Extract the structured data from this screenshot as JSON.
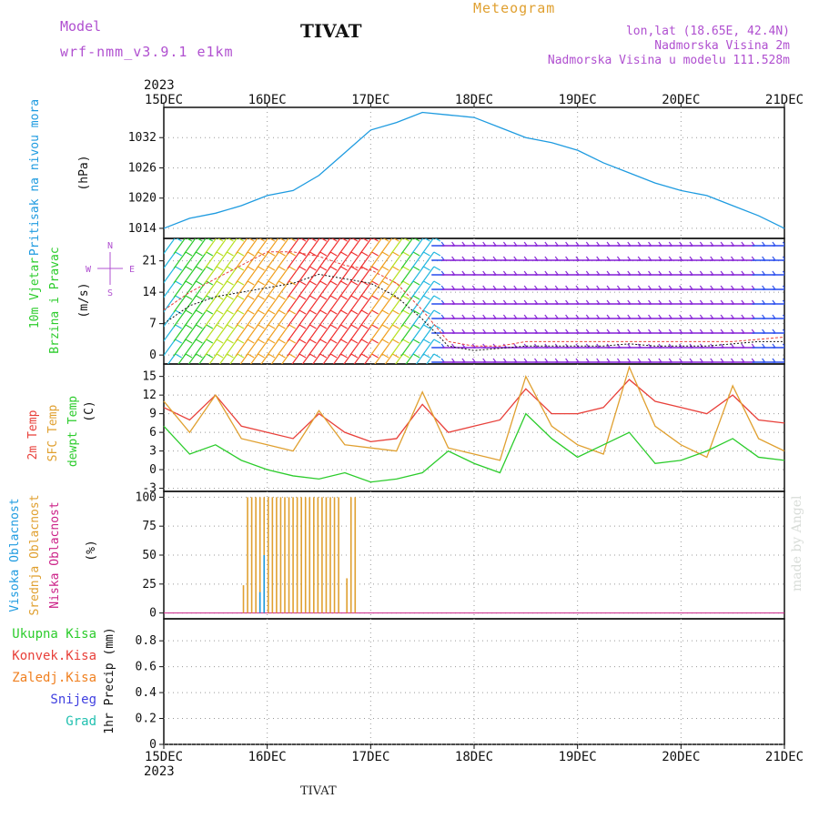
{
  "header": {
    "title": "TIVAT",
    "meteogram_label": "Meteogram",
    "model_label": "Model",
    "model_name": "wrf-nmm_v3.9.1 e1km",
    "lonlat": "lon,lat (18.65E, 42.4N)",
    "altitude": "Nadmorska Visina 2m",
    "model_altitude": "Nadmorska Visina u modelu 111.528m",
    "bottom_title": "TIVAT",
    "credit": "made by Angel"
  },
  "chart_data": [
    {
      "type": "line",
      "id": "pressure",
      "ylabel": [
        "Pritisak na nivou mora",
        "(hPa)"
      ],
      "ylim": [
        1012,
        1038
      ],
      "yticks": [
        1014,
        1020,
        1026,
        1032
      ],
      "x_days": [
        0,
        0.25,
        0.5,
        0.75,
        1,
        1.25,
        1.5,
        1.75,
        2,
        2.25,
        2.5,
        2.75,
        3,
        3.25,
        3.5,
        3.75,
        4,
        4.25,
        4.5,
        4.75,
        5,
        5.25,
        5.5,
        5.75,
        6
      ],
      "series": [
        {
          "color": "#1e9be0",
          "values": [
            1014,
            1016,
            1017,
            1018.5,
            1020.5,
            1021.5,
            1024.5,
            1029,
            1033.5,
            1035,
            1037,
            1036.5,
            1036,
            1034,
            1032,
            1031,
            1029.5,
            1027,
            1025,
            1023,
            1021.5,
            1020.5,
            1018.5,
            1016.5,
            1014
          ]
        }
      ]
    },
    {
      "type": "barb",
      "id": "wind",
      "ylabel": [
        "10m Vjetar",
        "Brzina i Pravac",
        "(m/s)"
      ],
      "compass": [
        "N",
        "E",
        "S",
        "W"
      ],
      "ylim": [
        -2,
        26
      ],
      "yticks": [
        0,
        7,
        14,
        21
      ],
      "x_days": [
        0,
        0.25,
        0.5,
        0.75,
        1,
        1.25,
        1.5,
        1.75,
        2,
        2.25,
        2.5,
        2.75,
        3,
        3.25,
        3.5,
        3.75,
        4,
        4.25,
        4.5,
        4.75,
        5,
        5.25,
        5.5,
        5.75,
        6
      ],
      "speed": [
        7,
        11,
        13,
        14,
        15,
        16,
        18,
        17,
        16,
        13,
        8,
        2,
        1,
        1.5,
        2,
        2,
        2,
        2,
        2.5,
        2,
        2,
        2,
        2.5,
        3,
        3
      ],
      "gust": [
        10,
        14,
        17,
        20,
        23,
        23,
        22,
        20,
        19,
        16,
        10,
        3,
        2,
        2,
        3,
        3,
        3,
        3,
        3,
        3,
        3,
        3,
        3,
        3.5,
        4
      ]
    },
    {
      "type": "line",
      "id": "temperature",
      "ylabel": [
        "2m Temp",
        "SFC Temp",
        "dewpt Temp",
        "(C)"
      ],
      "ylim": [
        -3.5,
        17
      ],
      "yticks": [
        -3,
        0,
        3,
        6,
        9,
        12,
        15
      ],
      "x_days": [
        0,
        0.25,
        0.5,
        0.75,
        1,
        1.25,
        1.5,
        1.75,
        2,
        2.25,
        2.5,
        2.75,
        3,
        3.25,
        3.5,
        3.75,
        4,
        4.25,
        4.5,
        4.75,
        5,
        5.25,
        5.5,
        5.75,
        6
      ],
      "series": [
        {
          "color": "#e8403a",
          "values": [
            10,
            8,
            12,
            7,
            6,
            5,
            9,
            6,
            4.5,
            5,
            10.5,
            6,
            7,
            8,
            13,
            9,
            9,
            10,
            14.5,
            11,
            10,
            9,
            12,
            8,
            7.5
          ]
        },
        {
          "color": "#e0a030",
          "values": [
            11,
            6,
            12,
            5,
            4,
            3,
            9.5,
            4,
            3.5,
            3,
            12.5,
            3.5,
            2.5,
            1.5,
            15,
            7,
            4,
            2.5,
            16.5,
            7,
            4,
            2,
            13.5,
            5,
            3
          ]
        },
        {
          "color": "#2ccc2c",
          "values": [
            7,
            2.5,
            4,
            1.5,
            0,
            -1,
            -1.5,
            -0.5,
            -2,
            -1.5,
            -0.5,
            3,
            1,
            -0.5,
            9,
            5,
            2,
            4,
            6,
            1,
            1.5,
            3,
            5,
            2,
            1.5
          ]
        }
      ]
    },
    {
      "type": "bar",
      "id": "cloud",
      "ylabel": [
        "Visoka Oblacnost",
        "Srednja Oblacnost",
        "Niska Oblacnost",
        "(%)"
      ],
      "ylim": [
        -5,
        105
      ],
      "yticks": [
        0,
        25,
        50,
        75,
        100
      ],
      "x_days": [
        0.77,
        0.81,
        0.85,
        0.89,
        0.93,
        0.97,
        1.01,
        1.05,
        1.09,
        1.13,
        1.17,
        1.21,
        1.25,
        1.29,
        1.33,
        1.37,
        1.41,
        1.45,
        1.49,
        1.53,
        1.57,
        1.61,
        1.65,
        1.69,
        1.73,
        1.77,
        1.81,
        1.85
      ],
      "series": [
        {
          "name": "Srednja Oblacnost",
          "color": "#e0a030",
          "values": [
            24,
            100,
            100,
            100,
            100,
            100,
            100,
            100,
            100,
            100,
            100,
            100,
            100,
            100,
            100,
            100,
            100,
            100,
            100,
            100,
            100,
            100,
            100,
            100,
            0,
            30,
            100,
            100
          ]
        },
        {
          "name": "Visoka Oblacnost",
          "color": "#1e9be0",
          "values": [
            0,
            0,
            0,
            0,
            18,
            50,
            0,
            0,
            0,
            0,
            0,
            0,
            0,
            0,
            0,
            0,
            0,
            0,
            0,
            0,
            0,
            0,
            0,
            0,
            0,
            0,
            0,
            0
          ]
        }
      ],
      "baseline_color": "#cc2288"
    },
    {
      "type": "bar",
      "id": "precip",
      "ylabel": [
        "1hr Precip (mm)"
      ],
      "legend": [
        {
          "name": "Ukupna Kisa",
          "color": "#2ccc2c"
        },
        {
          "name": "Konvek.Kisa",
          "color": "#e8403a"
        },
        {
          "name": "Zaledj.Kisa",
          "color": "#f08020"
        },
        {
          "name": "Snijeg",
          "color": "#4040e0"
        },
        {
          "name": "Grad",
          "color": "#20c0b0"
        }
      ],
      "ylim": [
        0,
        0.97
      ],
      "yticks": [
        0,
        0.2,
        0.4,
        0.6,
        0.8
      ],
      "values": []
    }
  ],
  "time_axis": {
    "year": "2023",
    "days": [
      "15DEC",
      "16DEC",
      "17DEC",
      "18DEC",
      "19DEC",
      "20DEC",
      "21DEC"
    ]
  }
}
